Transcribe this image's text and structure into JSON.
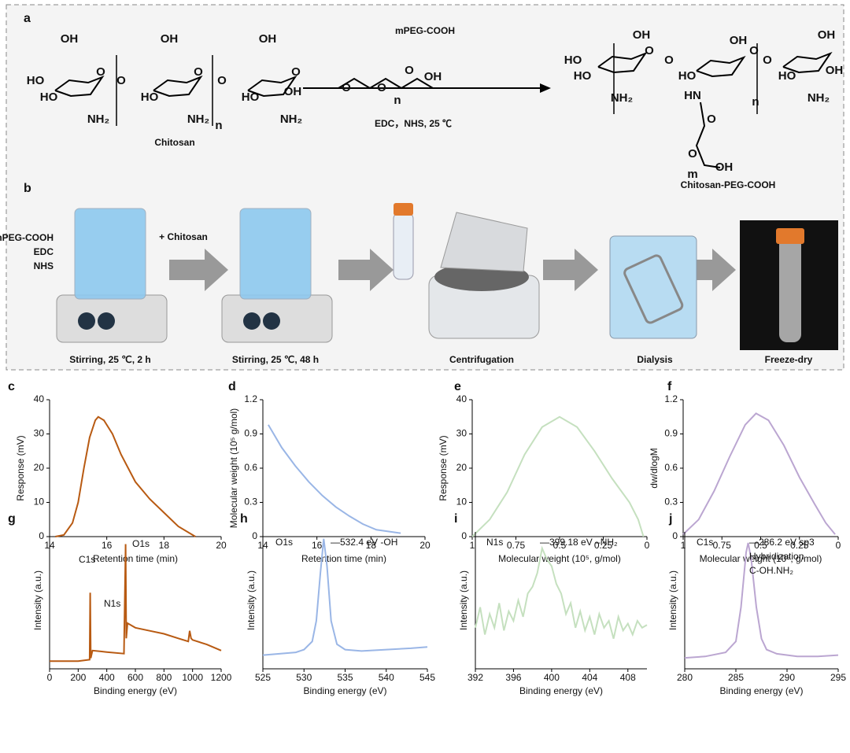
{
  "scheme": {
    "panel_a": "a",
    "reagent": "mPEG-COOH",
    "conditions": "EDC，NHS, 25 ℃",
    "reactant": "Chitosan",
    "product": "Chitosan-PEG-COOH",
    "reactant_atoms": [
      "OH",
      "HO",
      "HO",
      "NH₂",
      "O",
      "O",
      "OH",
      "HO",
      "NH₂",
      "O",
      "n",
      "O",
      "OH",
      "HO",
      "NH₂",
      "O",
      "OH"
    ],
    "reagent_atoms": [
      "O",
      "O",
      "n",
      "O",
      "OH"
    ],
    "product_atoms": [
      "OH",
      "HO",
      "HO",
      "NH₂",
      "O",
      "O",
      "OH",
      "HO",
      "HN",
      "n",
      "O",
      "O",
      "OH",
      "HO",
      "NH₂",
      "OH",
      "O",
      "O",
      "m",
      "OH"
    ],
    "panel_b": "b",
    "reagents": [
      "mPEG-COOH",
      "EDC",
      "NHS"
    ],
    "addition": "+ Chitosan",
    "steps": [
      "Stirring, 25 ℃, 2 h",
      "Stirring, 25 ℃, 48 h",
      "Centrifugation",
      "Dialysis",
      "Freeze-dry"
    ]
  },
  "chart_data": [
    {
      "type": "line",
      "label": "c",
      "color": "#b85a12",
      "xlabel": "Retention time (min)",
      "ylabel": "Response (mV)",
      "x": [
        14.2,
        14.5,
        14.8,
        15.0,
        15.2,
        15.4,
        15.6,
        15.7,
        15.9,
        16.2,
        16.5,
        17.0,
        17.5,
        18.0,
        18.5,
        19.1
      ],
      "values": [
        0,
        0.5,
        4,
        10,
        20,
        29,
        34,
        35,
        34,
        30,
        24,
        16,
        11,
        7,
        3,
        0
      ],
      "xlim": [
        14,
        20
      ],
      "ylim": [
        0,
        40
      ],
      "xticks": [
        14,
        16,
        18,
        20
      ],
      "yticks": [
        0,
        10,
        20,
        30,
        40
      ],
      "annotations": []
    },
    {
      "type": "line",
      "label": "d",
      "color": "#9ab6e6",
      "xlabel": "Retention time (min)",
      "ylabel": "Molecular weight (10⁵ g/mol)",
      "x": [
        14.2,
        14.7,
        15.2,
        15.7,
        16.2,
        16.7,
        17.2,
        17.7,
        18.2,
        19.1
      ],
      "values": [
        0.98,
        0.78,
        0.62,
        0.48,
        0.36,
        0.26,
        0.18,
        0.11,
        0.06,
        0.03
      ],
      "xlim": [
        14,
        20
      ],
      "ylim": [
        0,
        1.2
      ],
      "xticks": [
        14,
        16,
        18,
        20
      ],
      "yticks": [
        0,
        0.3,
        0.6,
        0.9,
        1.2
      ],
      "annotations": []
    },
    {
      "type": "line",
      "label": "e",
      "color": "#c5e0bf",
      "xlabel": "Molecular weight (10⁵, g/mol)",
      "ylabel": "Response (mV)",
      "x": [
        1,
        0.9,
        0.8,
        0.7,
        0.6,
        0.5,
        0.4,
        0.3,
        0.2,
        0.1,
        0.05,
        0.02
      ],
      "values": [
        0,
        5,
        13,
        24,
        32,
        35,
        32,
        25,
        17,
        10,
        5,
        0
      ],
      "xlim": [
        1,
        0
      ],
      "ylim": [
        0,
        40
      ],
      "xticks": [
        1,
        0.75,
        0.5,
        0.25,
        0
      ],
      "yticks": [
        0,
        10,
        20,
        30,
        40
      ],
      "annotations": []
    },
    {
      "type": "line",
      "label": "f",
      "color": "#bba6d1",
      "xlabel": "Molecular weight (10⁵, g/mol)",
      "ylabel": "dw/dlogM",
      "x": [
        1,
        0.9,
        0.8,
        0.7,
        0.6,
        0.53,
        0.45,
        0.35,
        0.25,
        0.15,
        0.08,
        0.02
      ],
      "values": [
        0.02,
        0.15,
        0.4,
        0.7,
        0.98,
        1.08,
        1.02,
        0.8,
        0.52,
        0.28,
        0.12,
        0.02
      ],
      "xlim": [
        1,
        0
      ],
      "ylim": [
        0,
        1.2
      ],
      "xticks": [
        1,
        0.75,
        0.5,
        0.25,
        0
      ],
      "yticks": [
        0,
        0.3,
        0.6,
        0.9,
        1.2
      ],
      "annotations": []
    },
    {
      "type": "line",
      "label": "g",
      "color": "#b85a12",
      "xlabel": "Binding energy (eV)",
      "ylabel": "Intensity (a.u.)",
      "x": [
        0,
        100,
        200,
        280,
        284,
        288,
        300,
        400,
        520,
        530,
        532,
        536,
        545,
        600,
        700,
        800,
        900,
        970,
        980,
        990,
        1000,
        1100,
        1200
      ],
      "values": [
        5,
        5,
        5,
        6,
        50,
        7,
        12,
        11,
        10,
        70,
        82,
        20,
        30,
        27,
        25,
        23,
        20,
        18,
        25,
        20,
        19,
        16,
        12
      ],
      "xlim": [
        0,
        1200
      ],
      "ylim": [
        0,
        90
      ],
      "xticks": [
        0,
        200,
        400,
        600,
        800,
        1000,
        1200
      ],
      "annotations": [
        "C1s",
        "O1s",
        "N1s"
      ]
    },
    {
      "type": "line",
      "label": "h",
      "color": "#9ab6e6",
      "xlabel": "Binding energy (eV)",
      "ylabel": "Intensity (a.u.)",
      "x": [
        525,
        527,
        529,
        530,
        531,
        531.5,
        532,
        532.4,
        532.8,
        533.3,
        534,
        535,
        537,
        540,
        543,
        545
      ],
      "values": [
        10,
        11,
        12,
        14,
        20,
        35,
        70,
        95,
        75,
        35,
        18,
        14,
        13,
        14,
        15,
        16
      ],
      "xlim": [
        525,
        545
      ],
      "ylim": [
        0,
        100
      ],
      "xticks": [
        525,
        530,
        535,
        540,
        545
      ],
      "annotations": [
        "O1s",
        "—532.4 eV -OH"
      ]
    },
    {
      "type": "line",
      "label": "i",
      "color": "#c5e0bf",
      "xlabel": "Binding energy (eV)",
      "ylabel": "Intensity (a.u.)",
      "x": [
        392,
        392.5,
        393,
        393.5,
        394,
        394.5,
        395,
        395.5,
        396,
        396.5,
        397,
        397.5,
        398,
        398.5,
        399,
        399.5,
        400,
        400.5,
        401,
        401.5,
        402,
        402.5,
        403,
        403.5,
        404,
        404.5,
        405,
        405.5,
        406,
        406.5,
        407,
        407.5,
        408,
        408.5,
        409,
        409.5,
        410
      ],
      "values": [
        30,
        45,
        25,
        40,
        30,
        48,
        28,
        42,
        35,
        50,
        38,
        55,
        60,
        70,
        88,
        80,
        75,
        62,
        55,
        40,
        48,
        30,
        42,
        28,
        38,
        25,
        40,
        30,
        35,
        22,
        38,
        28,
        33,
        25,
        35,
        30,
        32
      ],
      "xlim": [
        392,
        410
      ],
      "ylim": [
        0,
        100
      ],
      "xticks": [
        392,
        396,
        400,
        404,
        408
      ],
      "annotations": [
        "N1s",
        "—399.18 eV –NH₂"
      ]
    },
    {
      "type": "line",
      "label": "j",
      "color": "#bba6d1",
      "xlabel": "Binding energy (eV)",
      "ylabel": "Intensity (a.u.)",
      "x": [
        280,
        282,
        284,
        285,
        285.5,
        286,
        286.2,
        286.5,
        287,
        287.5,
        288,
        289,
        291,
        293,
        295
      ],
      "values": [
        8,
        9,
        12,
        20,
        45,
        85,
        92,
        80,
        45,
        22,
        14,
        11,
        9,
        9,
        10
      ],
      "xlim": [
        280,
        295
      ],
      "ylim": [
        0,
        100
      ],
      "xticks": [
        280,
        285,
        290,
        295
      ],
      "annotations": [
        "C1s",
        "—286.2 eV sp3",
        "Hybridization",
        "C-OH.NH₂"
      ]
    }
  ]
}
